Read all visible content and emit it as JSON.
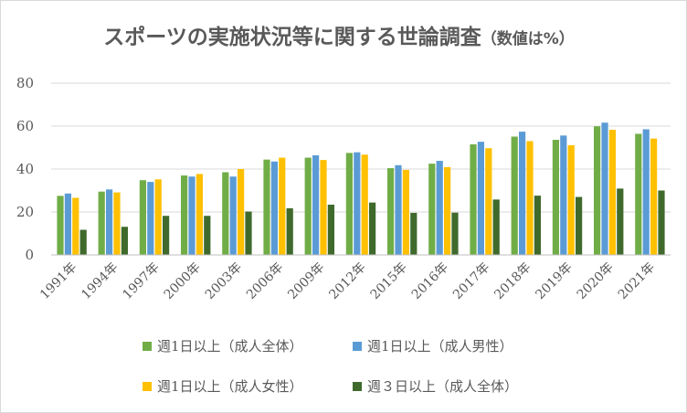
{
  "chart_data": {
    "type": "bar",
    "title": "スポーツの実施状況等に関する世論調査",
    "subtitle": "（数値は%）",
    "categories": [
      "1991年",
      "1994年",
      "1997年",
      "2000年",
      "2003年",
      "2006年",
      "2009年",
      "2012年",
      "2015年",
      "2016年",
      "2017年",
      "2018年",
      "2019年",
      "2020年",
      "2021年"
    ],
    "series": [
      {
        "name": "週1日以上（成人全体）",
        "color": "#70ad47",
        "values": [
          27.5,
          29.5,
          34.8,
          37.0,
          38.5,
          44.4,
          45.3,
          47.5,
          40.4,
          42.5,
          51.5,
          55.1,
          53.6,
          59.9,
          56.4
        ]
      },
      {
        "name": "週1日以上（成人男性）",
        "color": "#5b9bd5",
        "values": [
          28.6,
          30.5,
          34.0,
          36.5,
          36.5,
          43.5,
          46.4,
          47.8,
          41.8,
          43.8,
          52.7,
          57.4,
          55.6,
          61.6,
          58.5
        ]
      },
      {
        "name": "週1日以上（成人女性）",
        "color": "#ffc000",
        "values": [
          26.6,
          29.1,
          35.2,
          37.7,
          40.0,
          45.3,
          44.2,
          46.7,
          39.6,
          40.9,
          49.7,
          53.0,
          51.1,
          58.3,
          54.2
        ]
      },
      {
        "name": "週３日以上（成人全体）",
        "color": "#3f6a2c",
        "values": [
          11.7,
          13.1,
          18.2,
          18.2,
          20.2,
          21.7,
          23.4,
          24.4,
          19.6,
          19.7,
          25.8,
          27.6,
          27.0,
          30.9,
          30.0
        ]
      }
    ],
    "y_ticks": [
      "0",
      "20",
      "40",
      "60",
      "80"
    ],
    "ylim": [
      0,
      80
    ],
    "grid": true,
    "legend_position": "bottom"
  }
}
